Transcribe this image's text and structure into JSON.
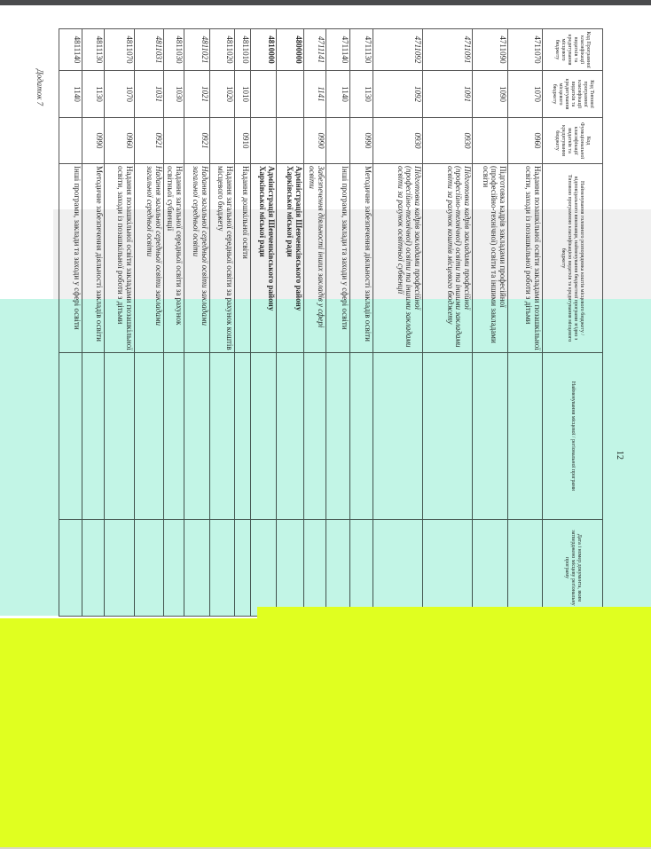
{
  "document": {
    "page_number": "12",
    "annex_label": "Додаток 7",
    "headers": [
      "Код Програмної класифікації видатків та кредитування місцевого бюджету",
      "Код Типової програмної класифікації видатків та кредитування місцевого бюджету",
      "Код Функціональної класифікації видатків та кредитування бюджету",
      "Найменування головного розпорядника коштів місцевого бюджету / відповідального виконавця, найменування бюджетної програми згідно з Типовою програмною класифікацією видатків та кредитування місцевого бюджету",
      "Найменування місцевої / регіональної програми",
      "Дата і номер документа, яким затверджено місцеву регіональну програму"
    ],
    "rows": [
      {
        "code": "4711070",
        "typical": "1070",
        "func": "0960",
        "name": "Надання позашкільної освіти закладами позашкільної освіти, заходи із позашкільної роботи з дітьми",
        "program": "",
        "doc": ""
      },
      {
        "code": "4711090",
        "typical": "1090",
        "func": "",
        "name": "Підготовка кадрів закладами професійної (професійно-технічної) освіти та іншими закладами освіти",
        "program": "",
        "doc": ""
      },
      {
        "code": "4711091",
        "typical": "1091",
        "func": "0930",
        "name": "Підготовка кадрів закладами професійної (професійно-технічної) освіти та іншими закладами освіти за рахунок коштів місцевого бюджету",
        "program": "",
        "doc": ""
      },
      {
        "code": "4711092",
        "typical": "1092",
        "func": "0930",
        "name": "Підготовка кадрів закладами професійної (професійно-технічної) освіти та іншими закладами освіти за рахунок освітньої субвенції",
        "program": "",
        "doc": ""
      },
      {
        "code": "4711130",
        "typical": "1130",
        "func": "0990",
        "name": "Методичне забезпечення діяльності закладів освіти",
        "program": "",
        "doc": ""
      },
      {
        "code": "4711140",
        "typical": "1140",
        "func": "",
        "name": "Інші програми, заклади та заходи у сфері освіти",
        "program": "",
        "doc": ""
      },
      {
        "code": "4711141",
        "typical": "1141",
        "func": "0990",
        "name": "Забезпечення діяльності інших закладів у сфері освіти",
        "program": "",
        "doc": ""
      },
      {
        "code": "4800000",
        "typical": "",
        "func": "",
        "name": "Адміністрація Шевченківського району Харківської міської ради",
        "program": "",
        "doc": ""
      },
      {
        "code": "4810000",
        "typical": "",
        "func": "",
        "name": "Адміністрація Шевченківського району Харківської міської ради",
        "program": "",
        "doc": ""
      },
      {
        "code": "4811010",
        "typical": "1010",
        "func": "0910",
        "name": "Надання дошкільної освіти",
        "program": "",
        "doc": ""
      },
      {
        "code": "4811020",
        "typical": "1020",
        "func": "",
        "name": "Надання загальної середньої освіти за рахунок коштів місцевого бюджету",
        "program": "",
        "doc": ""
      },
      {
        "code": "4811021",
        "typical": "1021",
        "func": "0921",
        "name": "Надання загальної середньої освіти закладами загальної середньої освіти",
        "program": "",
        "doc": ""
      },
      {
        "code": "4811030",
        "typical": "1030",
        "func": "",
        "name": "Надання загальної середньої освіти за рахунок освітньої субвенції",
        "program": "",
        "doc": ""
      },
      {
        "code": "4811031",
        "typical": "1031",
        "func": "0921",
        "name": "Надання загальної середньої освіти закладами загальної середньої освіти",
        "program": "",
        "doc": ""
      },
      {
        "code": "4811070",
        "typical": "1070",
        "func": "0960",
        "name": "Надання позашкільної освіти закладами позашкільної освіти, заходи із позашкільної роботи з дітьми",
        "program": "",
        "doc": ""
      },
      {
        "code": "4811130",
        "typical": "1130",
        "func": "0990",
        "name": "Методичне забезпечення діяльності закладів освіти",
        "program": "",
        "doc": ""
      },
      {
        "code": "4811140",
        "typical": "1140",
        "func": "",
        "name": "Інші програми, заклади та заходи у сфері освіти",
        "program": "",
        "doc": ""
      }
    ]
  },
  "colors": {
    "overlay_mint": "#c2f5e6",
    "overlay_yellow": "#e0ff20",
    "top_bar": "#4a4b4d"
  }
}
